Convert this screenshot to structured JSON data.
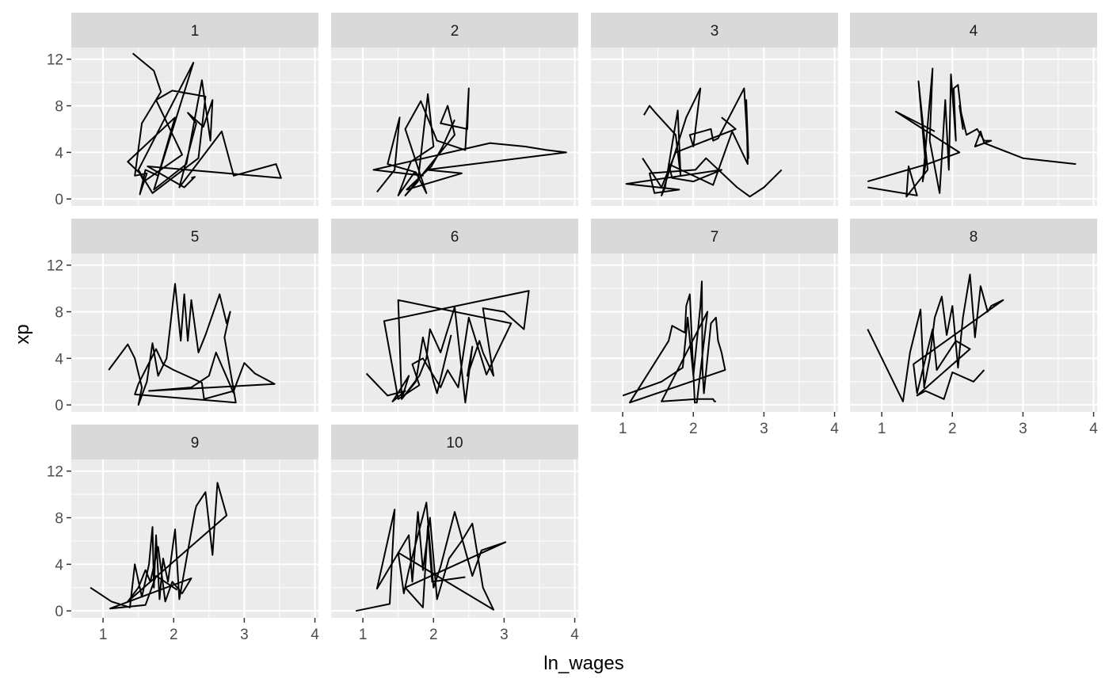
{
  "chart_data": {
    "type": "line",
    "facet_variable": "id",
    "xlabel": "ln_wages",
    "ylabel": "xp",
    "xlim": [
      0.55,
      4.05
    ],
    "ylim": [
      -0.6,
      13.0
    ],
    "x_ticks": [
      1,
      2,
      3,
      4
    ],
    "y_ticks": [
      0,
      4,
      8,
      12
    ],
    "grid": true,
    "legend": "none",
    "colors": {
      "panel_bg": "#EBEBEB",
      "strip_bg": "#D9D9D9",
      "grid": "#FFFFFF",
      "line": "#000000"
    },
    "panels": [
      {
        "label": "1",
        "x": [
          1.42,
          1.72,
          1.82,
          1.55,
          1.45,
          1.62,
          1.52,
          1.6,
          1.78,
          2.02,
          1.35,
          1.52,
          1.58,
          2.12,
          1.75,
          1.98,
          2.45,
          2.35,
          1.7,
          1.5,
          2.28,
          1.72,
          2.18,
          2.4,
          2.52,
          2.55,
          2.42,
          2.2,
          2.32,
          2.08,
          2.68,
          2.85,
          3.45,
          3.52,
          1.63,
          2.15,
          2.3,
          2.25
        ],
        "y": [
          12.5,
          11.0,
          9.2,
          6.5,
          2.0,
          2.2,
          0.4,
          2.5,
          2.0,
          7.0,
          3.2,
          2.2,
          1.5,
          3.8,
          8.5,
          9.3,
          8.8,
          3.5,
          0.5,
          2.5,
          11.7,
          0.8,
          3.0,
          10.2,
          5.0,
          8.5,
          6.2,
          7.4,
          6.5,
          1.0,
          5.8,
          2.0,
          3.0,
          1.8,
          2.8,
          1.0,
          1.9,
          1.8
        ]
      },
      {
        "label": "2",
        "x": [
          1.2,
          1.45,
          1.52,
          1.35,
          1.75,
          1.9,
          1.6,
          1.82,
          2.05,
          2.45,
          2.5,
          2.48,
          2.1,
          2.2,
          2.3,
          1.6,
          1.78,
          1.92,
          2.0,
          1.68,
          1.5,
          1.72,
          1.85,
          1.15,
          2.8,
          3.3,
          3.6,
          3.88,
          1.9,
          2.4,
          1.62,
          1.97,
          2.13,
          2.3
        ],
        "y": [
          0.6,
          2.5,
          7.0,
          3.0,
          2.3,
          0.5,
          6.0,
          8.4,
          5.0,
          4.2,
          9.5,
          6.0,
          6.5,
          8.0,
          5.5,
          0.3,
          1.5,
          9.0,
          4.5,
          3.2,
          0.3,
          2.2,
          2.0,
          2.5,
          4.8,
          4.5,
          4.2,
          4.0,
          2.5,
          2.2,
          0.8,
          2.8,
          4.5,
          6.8
        ]
      },
      {
        "label": "3",
        "x": [
          1.3,
          1.38,
          1.45,
          1.75,
          1.82,
          1.78,
          1.6,
          1.55,
          1.9,
          2.1,
          2.0,
          1.95,
          2.25,
          2.28,
          2.35,
          2.72,
          2.78,
          2.75,
          2.77,
          2.55,
          2.28,
          1.65,
          1.7,
          2.0,
          2.4,
          1.05,
          1.8,
          1.45,
          1.38,
          2.03,
          2.18,
          2.62,
          2.8,
          3.0,
          3.25
        ],
        "y": [
          7.2,
          8.0,
          7.5,
          5.5,
          2.0,
          7.6,
          1.0,
          0.3,
          7.0,
          9.5,
          4.5,
          5.5,
          6.0,
          5.0,
          5.2,
          9.5,
          3.5,
          8.5,
          3.0,
          5.8,
          1.2,
          3.0,
          1.8,
          1.5,
          2.5,
          1.3,
          0.8,
          0.5,
          2.2,
          2.5,
          3.5,
          1.0,
          0.2,
          1.0,
          2.5
        ],
        "extra": [
          [
            1.28,
            3.5
          ],
          [
            1.55,
            1.0
          ],
          [
            1.75,
            4.0
          ],
          [
            2.6,
            6.0
          ],
          [
            2.4,
            7.0
          ]
        ]
      },
      {
        "label": "4",
        "x": [
          0.8,
          1.5,
          1.38,
          1.35,
          1.65,
          1.52,
          1.62,
          1.58,
          1.72,
          1.68,
          1.82,
          1.9,
          1.95,
          1.98,
          2.05,
          2.02,
          2.08,
          2.15,
          2.1,
          2.2,
          2.35,
          2.45,
          2.55,
          2.32,
          2.4,
          2.45,
          3.0,
          3.75
        ],
        "y": [
          1.0,
          0.3,
          2.8,
          0.2,
          2.5,
          10.1,
          3.0,
          1.5,
          11.2,
          5.0,
          0.5,
          8.5,
          2.5,
          10.7,
          5.0,
          9.5,
          9.8,
          6.0,
          8.0,
          5.5,
          6.0,
          5.0,
          5.0,
          4.5,
          5.8,
          4.8,
          3.5,
          3.0
        ],
        "extra": [
          [
            0.8,
            1.5
          ],
          [
            1.65,
            3.0
          ],
          [
            2.1,
            4.0
          ],
          [
            1.2,
            7.5
          ],
          [
            1.75,
            5.8
          ]
        ]
      },
      {
        "label": "5",
        "x": [
          1.08,
          1.35,
          1.45,
          1.55,
          1.5,
          1.62,
          1.7,
          1.78,
          1.9,
          2.02,
          2.1,
          2.15,
          2.2,
          2.25,
          2.35,
          2.45,
          2.65,
          2.75,
          2.8,
          2.72,
          2.88,
          1.45,
          1.5,
          1.75,
          1.85,
          2.0,
          2.4,
          2.43,
          2.85,
          3.0,
          3.15,
          3.43,
          1.65,
          2.25,
          2.5,
          2.6,
          2.85
        ],
        "y": [
          3.0,
          5.2,
          4.0,
          1.5,
          0.0,
          2.0,
          5.3,
          2.5,
          4.0,
          10.4,
          5.5,
          9.5,
          5.5,
          9.0,
          4.5,
          6.0,
          9.5,
          7.0,
          8.0,
          5.8,
          0.2,
          0.9,
          1.8,
          4.8,
          3.5,
          3.0,
          1.9,
          0.5,
          1.2,
          3.6,
          2.7,
          1.8,
          1.2,
          1.5,
          2.5,
          4.5,
          1.0
        ]
      },
      {
        "label": "6",
        "x": [
          1.05,
          1.35,
          1.6,
          1.42,
          1.65,
          1.55,
          1.8,
          1.9,
          1.95,
          2.1,
          2.3,
          2.45,
          2.55,
          2.48,
          2.65,
          2.7,
          2.85,
          2.7,
          3.0,
          3.28,
          3.35,
          1.3,
          1.5,
          1.8,
          1.7,
          1.85,
          2.1,
          2.2,
          2.35,
          2.5,
          2.75,
          3.1,
          1.5,
          1.55,
          1.75,
          1.85,
          2.0,
          2.05,
          2.25
        ],
        "y": [
          2.7,
          0.8,
          1.2,
          0.3,
          2.5,
          0.5,
          2.5,
          4.0,
          6.5,
          4.5,
          8.4,
          0.2,
          5.0,
          2.5,
          5.5,
          4.5,
          2.5,
          8.3,
          8.0,
          6.5,
          9.8,
          7.2,
          0.5,
          1.7,
          3.5,
          4.0,
          1.5,
          3.0,
          1.5,
          7.5,
          2.6,
          7.0,
          9.0,
          0.5,
          2.0,
          5.8,
          2.0,
          1.0,
          6.0
        ]
      },
      {
        "label": "7",
        "x": [
          1.0,
          1.55,
          1.85,
          1.92,
          2.0,
          2.1,
          2.12,
          2.13,
          2.15,
          2.25,
          2.32,
          2.35,
          2.4,
          2.45,
          1.1,
          1.65,
          1.7,
          1.88,
          1.9,
          1.95,
          2.02,
          2.05,
          2.2,
          1.55,
          2.05,
          2.28,
          2.3,
          2.32
        ],
        "y": [
          0.8,
          2.0,
          3.2,
          7.5,
          2.5,
          8.5,
          10.6,
          3.0,
          1.0,
          7.0,
          7.5,
          5.5,
          4.5,
          3.0,
          0.2,
          5.5,
          6.8,
          6.2,
          8.5,
          9.5,
          0.2,
          0.2,
          8.0,
          0.3,
          0.5,
          0.5,
          0.3,
          0.3
        ]
      },
      {
        "label": "8",
        "x": [
          0.8,
          1.3,
          1.4,
          1.55,
          1.6,
          1.68,
          1.75,
          1.85,
          1.92,
          2.0,
          2.08,
          2.15,
          2.25,
          2.32,
          2.4,
          2.5,
          2.55,
          2.65,
          2.72,
          1.45,
          1.5,
          1.72,
          1.78,
          2.05,
          2.25,
          1.5,
          1.62,
          1.88,
          2.0,
          2.3,
          2.45
        ],
        "y": [
          6.5,
          0.3,
          4.5,
          8.2,
          1.5,
          4.0,
          7.5,
          9.3,
          6.0,
          8.5,
          3.2,
          7.5,
          11.2,
          5.8,
          10.2,
          8.0,
          8.5,
          8.8,
          9.0,
          3.5,
          1.0,
          6.5,
          3.0,
          5.5,
          4.8,
          0.8,
          1.2,
          0.5,
          2.8,
          2.0,
          3.0
        ]
      },
      {
        "label": "9",
        "x": [
          0.82,
          1.12,
          1.38,
          1.45,
          1.55,
          1.65,
          1.7,
          1.72,
          1.75,
          1.8,
          1.85,
          1.92,
          2.02,
          2.08,
          2.22,
          2.3,
          2.32,
          2.45,
          2.55,
          2.62,
          2.75,
          1.35,
          1.5,
          1.6,
          1.67,
          1.78,
          1.88,
          1.98,
          2.12,
          2.25,
          1.1,
          1.6,
          1.75,
          2.05
        ],
        "y": [
          2.0,
          0.8,
          0.3,
          4.0,
          1.2,
          4.0,
          7.2,
          2.0,
          6.5,
          1.0,
          4.5,
          2.5,
          7.0,
          1.0,
          5.8,
          8.5,
          9.0,
          10.2,
          4.8,
          11.0,
          8.2,
          0.8,
          2.0,
          3.5,
          2.5,
          5.5,
          0.8,
          2.5,
          1.5,
          2.8,
          0.2,
          0.5,
          3.0,
          1.8
        ]
      },
      {
        "label": "10",
        "x": [
          0.9,
          1.38,
          1.45,
          1.2,
          1.65,
          1.7,
          1.78,
          1.85,
          1.95,
          2.05,
          2.22,
          2.4,
          2.55,
          2.7,
          2.85,
          1.5,
          1.58,
          1.65,
          1.9,
          2.0,
          2.1,
          2.3,
          2.55,
          2.68,
          3.02,
          1.6,
          1.85,
          1.92,
          1.98,
          2.45
        ],
        "y": [
          0.0,
          0.6,
          8.7,
          1.9,
          6.5,
          2.5,
          8.5,
          3.5,
          8.0,
          1.0,
          4.5,
          6.0,
          7.5,
          2.0,
          0.1,
          5.0,
          1.5,
          3.5,
          9.3,
          2.0,
          3.8,
          8.5,
          3.0,
          5.2,
          5.9,
          2.0,
          0.3,
          7.3,
          2.5,
          2.9
        ]
      }
    ]
  }
}
